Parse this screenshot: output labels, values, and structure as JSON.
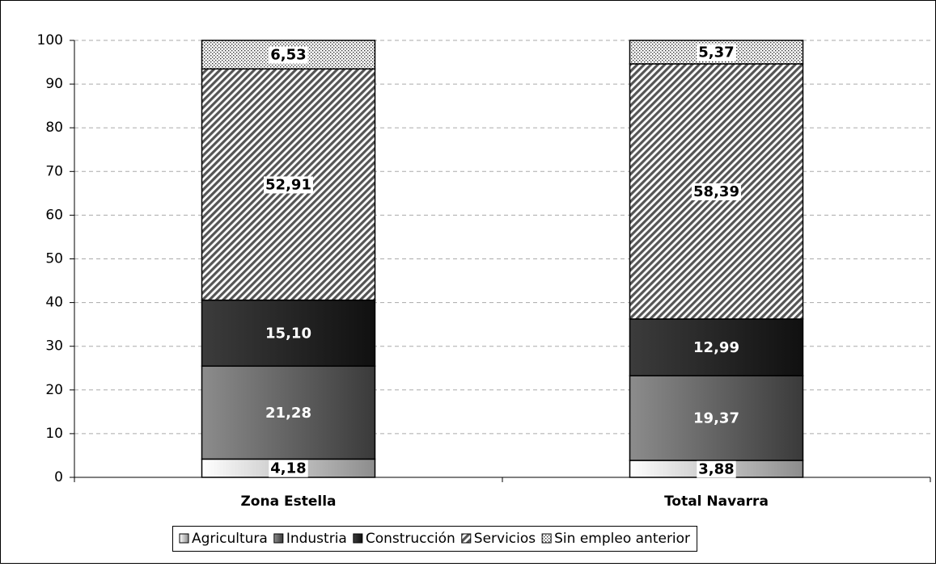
{
  "chart_data": {
    "type": "stacked_bar",
    "categories": [
      "Zona Estella",
      "Total Navarra"
    ],
    "series": [
      {
        "name": "Agricultura",
        "color": "#d9d9d9",
        "values": [
          4.18,
          3.88
        ],
        "value_labels": [
          "4,18",
          "3,88"
        ]
      },
      {
        "name": "Industria",
        "color": "#808080",
        "values": [
          21.28,
          19.37
        ],
        "value_labels": [
          "21,28",
          "19,37"
        ]
      },
      {
        "name": "Construcción",
        "color": "#262626",
        "values": [
          15.1,
          12.99
        ],
        "value_labels": [
          "15,10",
          "12,99"
        ]
      },
      {
        "name": "Servicios",
        "color": "#595959",
        "values": [
          52.91,
          58.39
        ],
        "value_labels": [
          "52,91",
          "58,39"
        ]
      },
      {
        "name": "Sin empleo anterior",
        "color": "#a6a6a6",
        "values": [
          6.53,
          5.37
        ],
        "value_labels": [
          "6,53",
          "5,37"
        ]
      }
    ],
    "ylim": [
      0,
      100
    ],
    "yticks": [
      0,
      10,
      20,
      30,
      40,
      50,
      60,
      70,
      80,
      90,
      100
    ],
    "grid": true,
    "legend": "bottom"
  }
}
